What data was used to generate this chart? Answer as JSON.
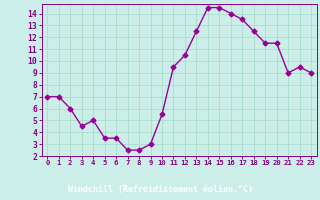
{
  "x": [
    0,
    1,
    2,
    3,
    4,
    5,
    6,
    7,
    8,
    9,
    10,
    11,
    12,
    13,
    14,
    15,
    16,
    17,
    18,
    19,
    20,
    21,
    22,
    23
  ],
  "y": [
    7.0,
    7.0,
    6.0,
    4.5,
    5.0,
    3.5,
    3.5,
    2.5,
    2.5,
    3.0,
    5.5,
    9.5,
    10.5,
    12.5,
    14.5,
    14.5,
    14.0,
    13.5,
    12.5,
    11.5,
    11.5,
    9.0,
    9.5,
    9.0
  ],
  "line_color": "#990099",
  "marker": "D",
  "markersize": 2.5,
  "linewidth": 1.0,
  "xlabel": "Windchill (Refroidissement éolien,°C)",
  "xlim": [
    -0.5,
    23.5
  ],
  "ylim": [
    2,
    14.8
  ],
  "yticks": [
    2,
    3,
    4,
    5,
    6,
    7,
    8,
    9,
    10,
    11,
    12,
    13,
    14
  ],
  "xticks": [
    0,
    1,
    2,
    3,
    4,
    5,
    6,
    7,
    8,
    9,
    10,
    11,
    12,
    13,
    14,
    15,
    16,
    17,
    18,
    19,
    20,
    21,
    22,
    23
  ],
  "background_color": "#cceee8",
  "grid_color": "#aaddcc",
  "plot_bg": "#cceee8",
  "label_color": "#880088",
  "tick_color": "#880088",
  "xlabel_bg": "#880088",
  "xlabel_fg": "#ffffff"
}
